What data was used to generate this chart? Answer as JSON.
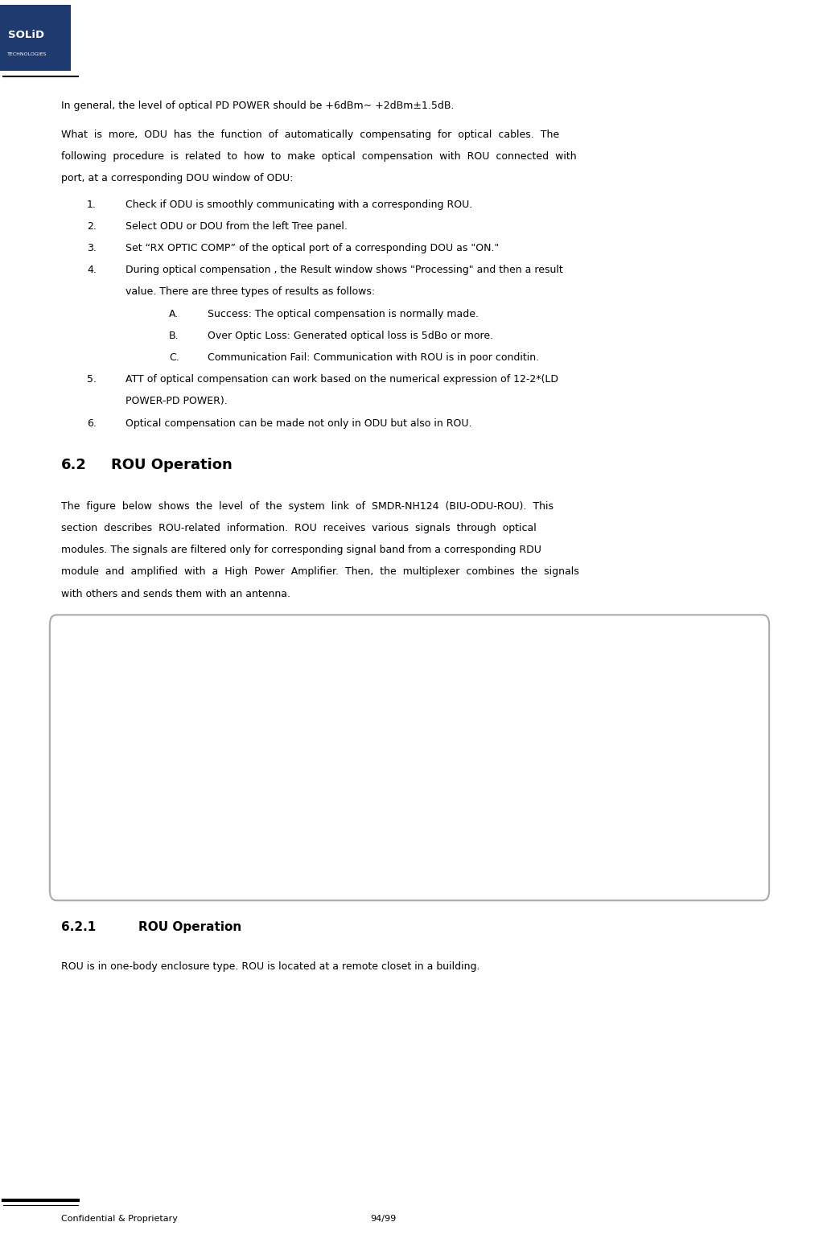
{
  "page_width": 10.18,
  "page_height": 15.6,
  "bg_color": "#ffffff",
  "logo_color": "#1e3a6e",
  "footer_text_left": "Confidential & Proprietary",
  "footer_text_right": "94/99",
  "intro_text": "In general, the level of optical PD POWER should be +6dBm~ +2dBm±1.5dB.",
  "para1_lines": [
    "What  is  more,  ODU  has  the  function  of  automatically  compensating  for  optical  cables.  The",
    "following  procedure  is  related  to  how  to  make  optical  compensation  with  ROU  connected  with",
    "port, at a corresponding DOU window of ODU:"
  ],
  "numbered_items": [
    "Check if ODU is smoothly communicating with a corresponding ROU.",
    "Select ODU or DOU from the left Tree panel.",
    "Set “RX OPTIC COMP” of the optical port of a corresponding DOU as \"ON.\"",
    "During optical compensation , the Result window shows \"Processing\" and then a result\nvalue. There are three types of results as follows:",
    "ATT of optical compensation can work based on the numerical expression of 12-2*(LD\nPOWER-PD POWER).",
    "Optical compensation can be made not only in ODU but also in ROU."
  ],
  "sub_items": [
    [
      "A.",
      "Success: The optical compensation is normally made."
    ],
    [
      "B.",
      "Over Optic Loss: Generated optical loss is 5dBo or more."
    ],
    [
      "C.",
      "Communication Fail: Communication with ROU is in poor conditin."
    ]
  ],
  "section_62_title": "6.2",
  "section_62_text": "ROU Operation",
  "section_62_para": [
    "The  figure  below  shows  the  level  of  the  system  link  of  SMDR-NH124  (BIU-ODU-ROU).  This",
    "section  describes  ROU-related  information.  ROU  receives  various  signals  through  optical",
    "modules. The signals are filtered only for corresponding signal band from a corresponding RDU",
    "module  and  amplified  with  a  High  Power  Amplifier.  Then,  the  multiplexer  combines  the  signals",
    "with others and sends them with an antenna."
  ],
  "section_621_title": "6.2.1",
  "section_621_text": "ROU Operation",
  "section_621_para": "ROU is in one-body enclosure type. ROU is located at a remote closet in a building."
}
